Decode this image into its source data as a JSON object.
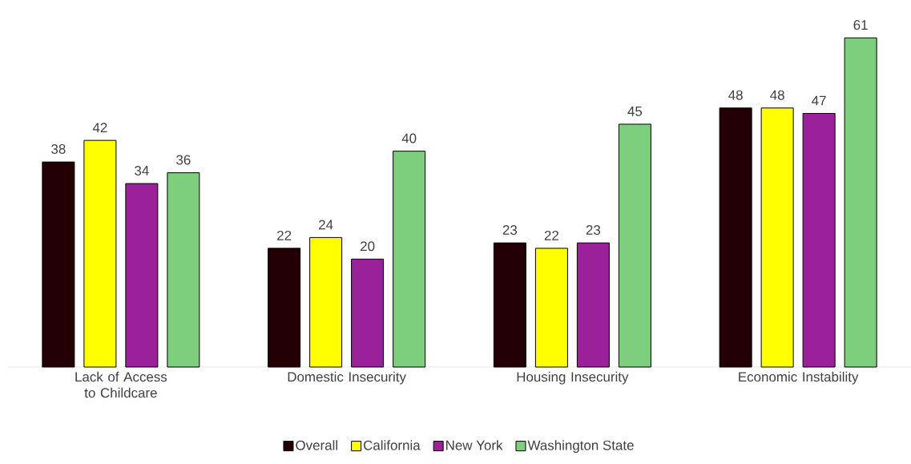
{
  "chart_data": {
    "type": "bar",
    "categories": [
      "Lack of Access to Childcare",
      "Domestic Insecurity",
      "Housing Insecurity",
      "Economic Instability"
    ],
    "series": [
      {
        "name": "Overall",
        "color": "#230005",
        "values": [
          38,
          22,
          23,
          48
        ]
      },
      {
        "name": "California",
        "color": "#ffff00",
        "values": [
          42,
          24,
          22,
          48
        ]
      },
      {
        "name": "New York",
        "color": "#9b219b",
        "values": [
          34,
          20,
          23,
          47
        ]
      },
      {
        "name": "Washington State",
        "color": "#7dce7d",
        "values": [
          36,
          40,
          45,
          61
        ]
      }
    ],
    "data_labels": true,
    "legend": "bottom"
  }
}
